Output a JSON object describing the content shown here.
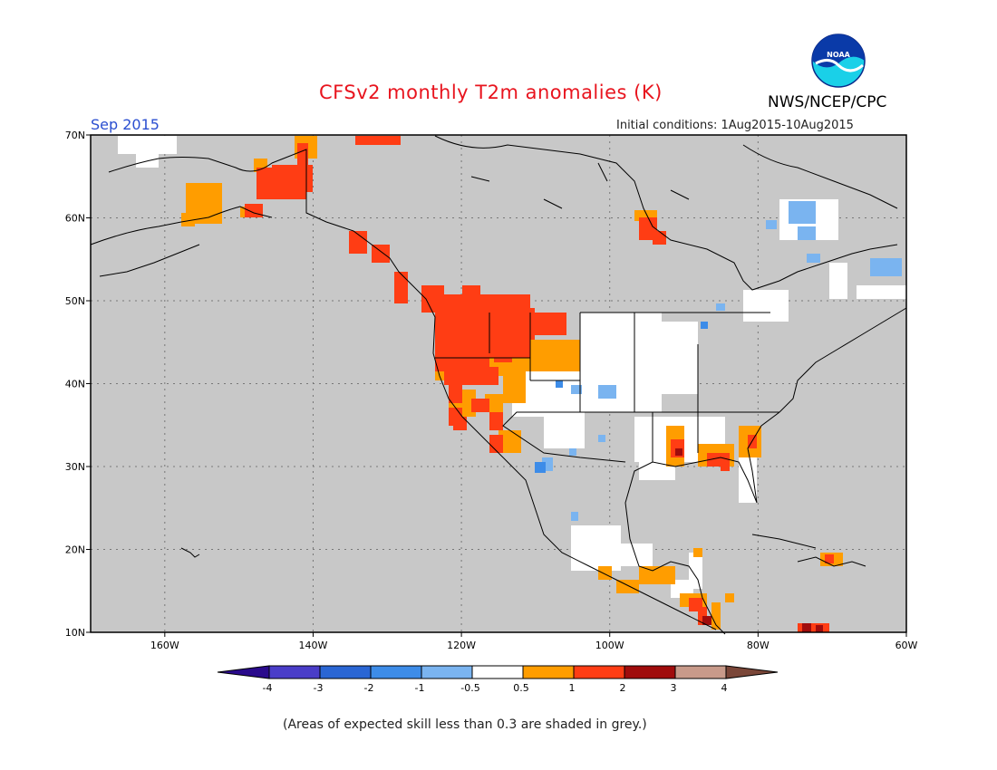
{
  "header": {
    "title": "CFSv2 monthly T2m anomalies (K)",
    "agency": "NWS/NCEP/CPC",
    "month": "Sep 2015",
    "initial_conditions": "Initial conditions: 1Aug2015-10Aug2015",
    "logo_text": "NOAA"
  },
  "map": {
    "lon_range": [
      -170,
      -60
    ],
    "lat_range": [
      10,
      70
    ],
    "lat_labels": [
      "70N",
      "60N",
      "50N",
      "40N",
      "30N",
      "20N",
      "10N"
    ],
    "lon_labels": [
      "160W",
      "140W",
      "120W",
      "100W",
      "80W",
      "60W"
    ],
    "background_color": "#c8c8c8"
  },
  "legend": {
    "bins": [
      {
        "color": "#2a0a8c"
      },
      {
        "color": "#4a3dc8"
      },
      {
        "color": "#2a66d4"
      },
      {
        "color": "#3d8ce8"
      },
      {
        "color": "#7ab4f0"
      },
      {
        "color": "#ffffff"
      },
      {
        "color": "#ff9d00"
      },
      {
        "color": "#ff3d14"
      },
      {
        "color": "#a00c0c"
      },
      {
        "color": "#c89a8a"
      },
      {
        "color": "#7a4638"
      }
    ],
    "tick_labels": [
      "-4",
      "-3",
      "-2",
      "-1",
      "-0.5",
      "0.5",
      "1",
      "2",
      "3",
      "4"
    ]
  },
  "footnote": "(Areas of expected skill less than 0.3 are shaded in grey.)"
}
